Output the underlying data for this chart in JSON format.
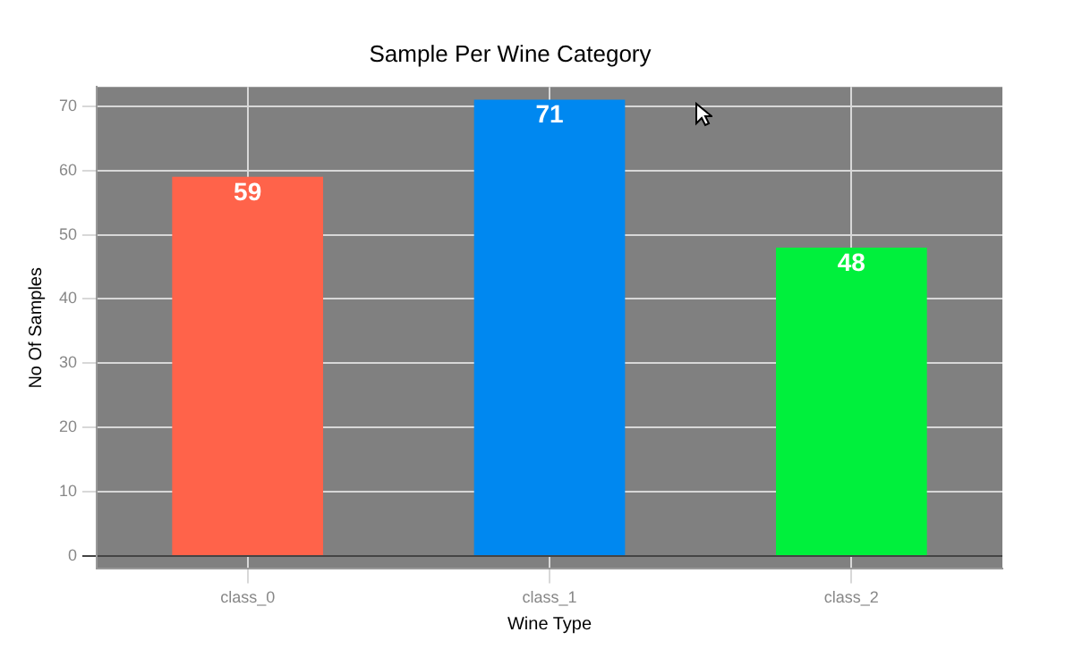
{
  "chart_data": {
    "type": "bar",
    "title": "Sample Per Wine Category",
    "xlabel": "Wine Type",
    "ylabel": "No Of Samples",
    "categories": [
      "class_0",
      "class_1",
      "class_2"
    ],
    "values": [
      59,
      71,
      48
    ],
    "colors": [
      "#ff634a",
      "#0088f0",
      "#00f03c"
    ],
    "ylim": [
      -2,
      73
    ],
    "yticks": [
      0,
      10,
      20,
      30,
      40,
      50,
      60,
      70
    ],
    "grid": true,
    "data_labels": true
  }
}
